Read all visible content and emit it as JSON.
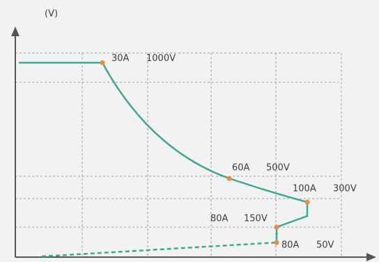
{
  "y_axis_label": "(V)",
  "points": [
    {
      "current": "30A",
      "voltage": "1000V"
    },
    {
      "current": "60A",
      "voltage": "500V"
    },
    {
      "current": "100A",
      "voltage": "300V"
    },
    {
      "current": "80A",
      "voltage": "150V"
    },
    {
      "current": "80A",
      "voltage": "50V"
    }
  ]
}
